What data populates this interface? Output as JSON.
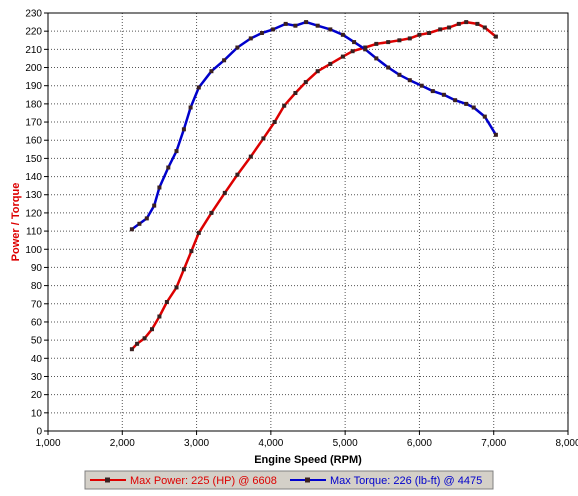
{
  "colors": {
    "power": "#dd0000",
    "torque": "#0000cc",
    "marker": "#3a2020",
    "grid": "#555555",
    "frame": "#000000",
    "legend_bg": "#d4d0c8"
  },
  "chart_data": {
    "type": "line",
    "title": "",
    "xlabel": "Engine Speed (RPM)",
    "ylabel": "Power / Torque",
    "xlim": [
      1000,
      8000
    ],
    "ylim": [
      0,
      230
    ],
    "x_ticks": [
      1000,
      2000,
      3000,
      4000,
      5000,
      6000,
      7000,
      8000
    ],
    "x_tick_labels": [
      "1,000",
      "2,000",
      "3,000",
      "4,000",
      "5,000",
      "6,000",
      "7,000",
      "8,000"
    ],
    "y_ticks": [
      0,
      10,
      20,
      30,
      40,
      50,
      60,
      70,
      80,
      90,
      100,
      110,
      120,
      130,
      140,
      150,
      160,
      170,
      180,
      190,
      200,
      210,
      220,
      230
    ],
    "grid": true,
    "legend_position": "bottom",
    "series": [
      {
        "key": "power",
        "legend": "Max Power: 225 (HP) @ 6608",
        "points": [
          [
            2130,
            45
          ],
          [
            2200,
            48
          ],
          [
            2300,
            51
          ],
          [
            2400,
            56
          ],
          [
            2500,
            63
          ],
          [
            2600,
            71
          ],
          [
            2730,
            79
          ],
          [
            2830,
            89
          ],
          [
            2930,
            99
          ],
          [
            3030,
            109
          ],
          [
            3200,
            120
          ],
          [
            3380,
            131
          ],
          [
            3550,
            141
          ],
          [
            3730,
            151
          ],
          [
            3900,
            161
          ],
          [
            4050,
            170
          ],
          [
            4180,
            179
          ],
          [
            4330,
            186
          ],
          [
            4470,
            192
          ],
          [
            4630,
            198
          ],
          [
            4800,
            202
          ],
          [
            4970,
            206
          ],
          [
            5100,
            209
          ],
          [
            5270,
            211
          ],
          [
            5420,
            213
          ],
          [
            5580,
            214
          ],
          [
            5730,
            215
          ],
          [
            5870,
            216
          ],
          [
            6000,
            218
          ],
          [
            6130,
            219
          ],
          [
            6280,
            221
          ],
          [
            6400,
            222
          ],
          [
            6530,
            224
          ],
          [
            6630,
            225
          ],
          [
            6780,
            224
          ],
          [
            6880,
            222
          ],
          [
            7030,
            217
          ]
        ]
      },
      {
        "key": "torque",
        "legend": "Max Torque: 226 (lb-ft) @ 4475",
        "points": [
          [
            2130,
            111
          ],
          [
            2230,
            114
          ],
          [
            2330,
            117
          ],
          [
            2430,
            124
          ],
          [
            2500,
            134
          ],
          [
            2620,
            145
          ],
          [
            2730,
            154
          ],
          [
            2830,
            166
          ],
          [
            2920,
            178
          ],
          [
            3030,
            189
          ],
          [
            3200,
            198
          ],
          [
            3370,
            204
          ],
          [
            3550,
            211
          ],
          [
            3730,
            216
          ],
          [
            3880,
            219
          ],
          [
            4030,
            221
          ],
          [
            4200,
            224
          ],
          [
            4330,
            223
          ],
          [
            4475,
            225
          ],
          [
            4630,
            223
          ],
          [
            4800,
            221
          ],
          [
            4970,
            218
          ],
          [
            5120,
            214
          ],
          [
            5270,
            210
          ],
          [
            5420,
            205
          ],
          [
            5580,
            200
          ],
          [
            5730,
            196
          ],
          [
            5870,
            193
          ],
          [
            6030,
            190
          ],
          [
            6180,
            187
          ],
          [
            6330,
            185
          ],
          [
            6480,
            182
          ],
          [
            6630,
            180
          ],
          [
            6730,
            178
          ],
          [
            6880,
            173
          ],
          [
            7030,
            163
          ]
        ]
      }
    ]
  }
}
